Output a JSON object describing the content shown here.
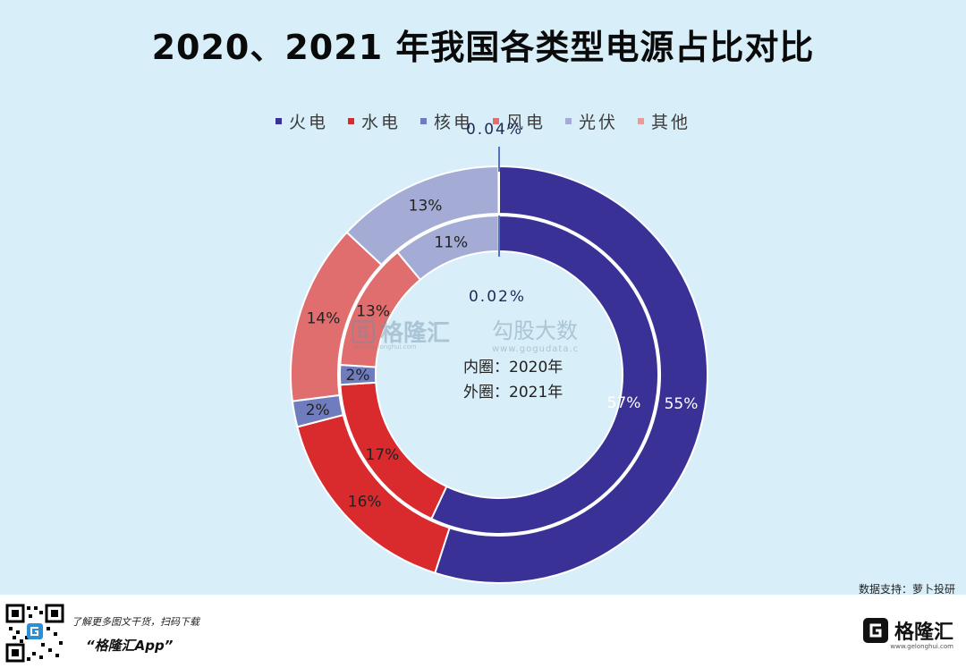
{
  "title": "2020、2021 年我国各类型电源占比对比",
  "legend": [
    {
      "label": "火电",
      "color": "#3a3196"
    },
    {
      "label": "水电",
      "color": "#d92a2e"
    },
    {
      "label": "核电",
      "color": "#6f7dbf"
    },
    {
      "label": "风电",
      "color": "#e06e6e"
    },
    {
      "label": "光伏",
      "color": "#a4acd6"
    },
    {
      "label": "其他",
      "color": "#ea9a9a"
    }
  ],
  "chart_data": {
    "type": "donut",
    "title": "2020、2021 年我国各类型电源占比对比",
    "categories": [
      "火电",
      "水电",
      "核电",
      "风电",
      "光伏",
      "其他"
    ],
    "series": [
      {
        "name": "2020",
        "ring": "inner",
        "values": [
          57,
          17,
          2,
          13,
          11,
          0.02
        ],
        "labels": [
          "57%",
          "17%",
          "2%",
          "13%",
          "11%",
          "0.02%"
        ]
      },
      {
        "name": "2021",
        "ring": "outer",
        "values": [
          55,
          16,
          2,
          14,
          13,
          0.04
        ],
        "labels": [
          "55%",
          "16%",
          "2%",
          "14%",
          "13%",
          "0.04%"
        ]
      }
    ],
    "center_text": [
      "内圈：2020年",
      "外圈：2021年"
    ]
  },
  "watermark": {
    "left_text": "格隆汇",
    "left_sub": "www.gelonghui.com",
    "right_text": "勾股大数",
    "right_sub": "www.gogudata.c"
  },
  "source_note": "数据支持：萝卜投研",
  "footer": {
    "line1": "了解更多图文干货，扫码下载",
    "line2": "“格隆汇App”",
    "brand": "格隆汇",
    "brand_sub": "www.gelonghui.com"
  }
}
